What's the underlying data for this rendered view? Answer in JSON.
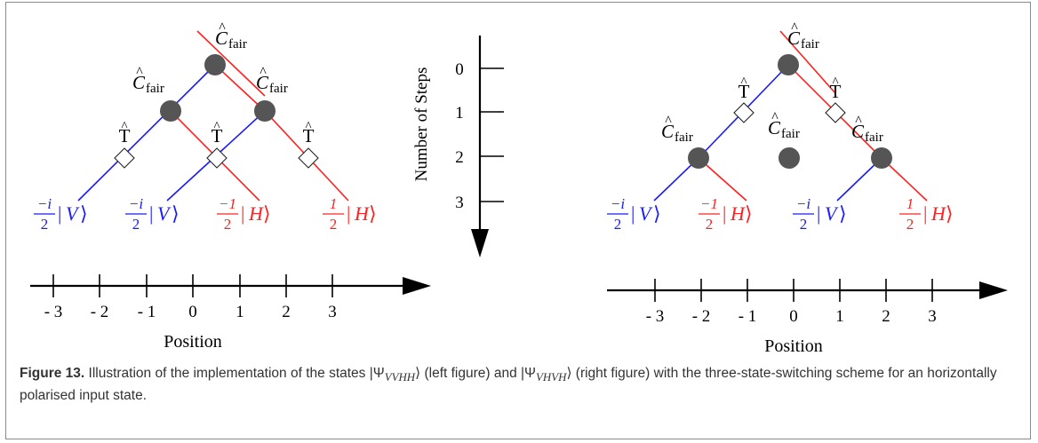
{
  "figure": {
    "left_diagram": {
      "coin_label": "C",
      "coin_sub": "fair",
      "t_label": "T",
      "states": [
        {
          "coef_num": "−i",
          "coef_den": "2",
          "ket": "V",
          "color": "#1a1aff"
        },
        {
          "coef_num": "−i",
          "coef_den": "2",
          "ket": "V",
          "color": "#1a1aff"
        },
        {
          "coef_num": "−1",
          "coef_den": "2",
          "ket": "H",
          "color": "#ff2020"
        },
        {
          "coef_num": "1",
          "coef_den": "2",
          "ket": "H",
          "color": "#ff2020"
        }
      ],
      "positions": [
        "- 3",
        "- 2",
        "- 1",
        "0",
        "1",
        "2",
        "3"
      ],
      "axis_label": "Position"
    },
    "steps_axis": {
      "label": "Number of Steps",
      "ticks": [
        "0",
        "1",
        "2",
        "3"
      ]
    },
    "right_diagram": {
      "coin_label": "C",
      "coin_sub": "fair",
      "t_label": "T",
      "states": [
        {
          "coef_num": "−i",
          "coef_den": "2",
          "ket": "V",
          "color": "#1a1aff"
        },
        {
          "coef_num": "−1",
          "coef_den": "2",
          "ket": "H",
          "color": "#ff2020"
        },
        {
          "coef_num": "−i",
          "coef_den": "2",
          "ket": "V",
          "color": "#1a1aff"
        },
        {
          "coef_num": "1",
          "coef_den": "2",
          "ket": "H",
          "color": "#ff2020"
        }
      ],
      "positions": [
        "- 3",
        "- 2",
        "- 1",
        "0",
        "1",
        "2",
        "3"
      ],
      "axis_label": "Position"
    }
  },
  "caption": {
    "label": "Figure 13.",
    "text_a": " Illustration of the implementation of the states |Ψ",
    "sub_a": "VVHH",
    "text_b": "⟩ (left figure) and |Ψ",
    "sub_b": "VHVH",
    "text_c": "⟩ (right figure) with the three-state-switching scheme for an horizontally polarised input state."
  },
  "colors": {
    "blue": "#1a1aff",
    "red": "#ff2020",
    "node": "#555555"
  }
}
